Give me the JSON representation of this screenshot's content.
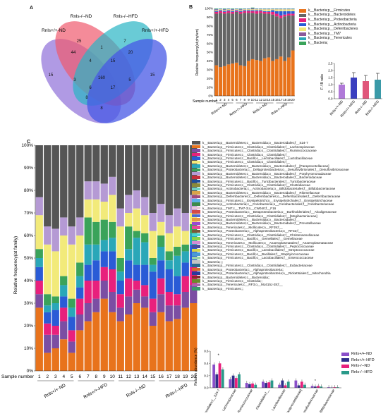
{
  "panels": {
    "a": "A",
    "b": "B",
    "c": "C"
  },
  "venn": {
    "labels": [
      "Rnls+/+-ND",
      "Rnls-/--ND",
      "Rnls-/--HFD",
      "Rnls+/+-HFD"
    ],
    "colors": [
      "#8f6fd8",
      "#f05a6e",
      "#2ab5c4",
      "#4758e6"
    ],
    "numbers": [
      "15",
      "25",
      "7",
      "15",
      "44",
      "1",
      "4",
      "15",
      "20",
      "160",
      "3",
      "17",
      "5",
      "8",
      "8",
      "6"
    ]
  },
  "phylum_chart": {
    "type": "bar",
    "ylabel": "Relative frequency(at phylum)",
    "yticks": [
      "0%",
      "10%",
      "20%",
      "30%",
      "40%",
      "50%",
      "60%",
      "70%",
      "80%",
      "90%",
      "100%"
    ],
    "x_title": "Sample number",
    "categories": [
      "1",
      "2",
      "3",
      "4",
      "5",
      "6",
      "7",
      "8",
      "9",
      "10",
      "11",
      "12",
      "13",
      "14",
      "15",
      "16",
      "17",
      "18",
      "19",
      "20"
    ],
    "groups": [
      "Rnls+/+-ND",
      "Rnls+/+-HFD",
      "Rnls-/--ND",
      "Rnls-/--HFD"
    ],
    "series": [
      {
        "name": "k__Bacteria;p__Firmicutes",
        "color": "#e8731c",
        "values": [
          35,
          33,
          34,
          36,
          37,
          38,
          35,
          34,
          40,
          42,
          41,
          40,
          43,
          44,
          40,
          42,
          45,
          40,
          44,
          52
        ]
      },
      {
        "name": "k__Bacteria;p__Bacteroidetes",
        "color": "#666666",
        "values": [
          59,
          62,
          60,
          59,
          57,
          58,
          59,
          61,
          55,
          53,
          53,
          55,
          51,
          50,
          53,
          49,
          44,
          51,
          48,
          40
        ]
      },
      {
        "name": "k__Bacteria;p__Proteobacteria",
        "color": "#e8207c",
        "values": [
          2,
          2,
          2,
          2,
          2,
          1,
          2,
          2,
          2,
          2,
          3,
          2,
          2,
          2,
          3,
          3,
          3,
          2,
          2,
          2
        ]
      },
      {
        "name": "k__Bacteria;p__Actinobacteria",
        "color": "#2a5bd6",
        "values": [
          1,
          1,
          1,
          1,
          1,
          1,
          1,
          1,
          1,
          1,
          1,
          1,
          1,
          1,
          2,
          3,
          5,
          4,
          3,
          3
        ]
      },
      {
        "name": "k__Bacteria;p__Deferribacteres",
        "color": "#f2ea7a",
        "values": [
          1,
          1,
          1,
          1,
          1,
          1,
          1,
          1,
          1,
          1,
          1,
          1,
          2,
          2,
          1,
          2,
          2,
          2,
          2,
          2
        ]
      },
      {
        "name": "k__Bacteria;p__TM7",
        "color": "#8a5a9a",
        "values": [
          1,
          0.5,
          1,
          0.5,
          1,
          0.5,
          1,
          0.5,
          0.5,
          1,
          0.5,
          0.5,
          0.5,
          0.5,
          0.5,
          0.5,
          0.5,
          0.5,
          0.5,
          0.5
        ]
      },
      {
        "name": "k__Bacteria;p__Tenericutes",
        "color": "#2aa7b8",
        "values": [
          0.5,
          0.5,
          0.5,
          0.5,
          0.5,
          0.5,
          0.5,
          0.5,
          0.5,
          0.5,
          0.5,
          0.5,
          0.5,
          0.5,
          0.5,
          0.5,
          0.5,
          0.5,
          0.5,
          0.5
        ]
      },
      {
        "name": "k__Bacteria;",
        "color": "#3aa35a",
        "values": [
          0.5,
          0,
          0.5,
          0,
          0.5,
          0,
          0.5,
          0,
          0,
          0.5,
          0,
          0,
          0,
          0,
          0,
          0,
          0,
          0,
          0,
          0
        ]
      }
    ]
  },
  "fb_ratio": {
    "type": "bar",
    "ylabel": "F / B ratio",
    "yticks": [
      "0.0",
      "0.5",
      "1.0",
      "1.5",
      "2.0",
      "2.5"
    ],
    "categories": [
      "Rnls+/+-ND",
      "Rnls+/+-HFD",
      "Rnls-/--ND",
      "Rnls-/--HFD"
    ],
    "values": [
      1.0,
      1.5,
      1.25,
      1.35
    ],
    "errors": [
      0.1,
      0.35,
      0.4,
      0.45
    ],
    "colors": [
      "#b079d8",
      "#3a3fbf",
      "#e0567a",
      "#3a9aa8"
    ],
    "ylim": [
      0,
      2.5
    ]
  },
  "family_chart": {
    "type": "bar",
    "ylabel": "Relative frequency(at family)",
    "yticks": [
      "0%",
      "10%",
      "20%",
      "30%",
      "40%",
      "50%",
      "60%",
      "70%",
      "80%",
      "90%",
      "100%"
    ],
    "x_title": "Sample number",
    "categories": [
      "1",
      "2",
      "3",
      "4",
      "5",
      "6",
      "7",
      "8",
      "9",
      "10",
      "11",
      "12",
      "13",
      "14",
      "15",
      "16",
      "17",
      "18",
      "19",
      "20"
    ],
    "groups": [
      "Rnls+/+-ND",
      "Rnls+/+-HFD",
      "Rnls-/--ND",
      "Rnls-/--HFD"
    ],
    "series": [
      {
        "name": "S24-7",
        "color": "#e8731c",
        "values": [
          28,
          8,
          10,
          14,
          8,
          18,
          22,
          26,
          32,
          26,
          22,
          25,
          30,
          28,
          20,
          26,
          22,
          23,
          28,
          30
        ]
      },
      {
        "name": "Lachnospiraceae",
        "color": "#7b4ea3",
        "values": [
          6,
          8,
          6,
          8,
          5,
          7,
          8,
          6,
          8,
          9,
          6,
          8,
          6,
          5,
          6,
          8,
          7,
          6,
          7,
          8
        ]
      },
      {
        "name": "Ruminococcaceae",
        "color": "#e8207c",
        "values": [
          6,
          5,
          4,
          6,
          5,
          7,
          10,
          8,
          6,
          10,
          6,
          8,
          4,
          5,
          6,
          7,
          6,
          5,
          7,
          8
        ]
      },
      {
        "name": "Clostridiales",
        "color": "#2a5bd6",
        "values": [
          6,
          5,
          7,
          5,
          6,
          5,
          7,
          9,
          7,
          8,
          6,
          8,
          7,
          9,
          12,
          8,
          10,
          8,
          6,
          10
        ]
      },
      {
        "name": "Lactobacillaceae",
        "color": "#2aa7b8",
        "values": [
          4,
          3,
          3,
          5,
          4,
          5,
          9,
          7,
          5,
          6,
          4,
          5,
          12,
          10,
          3,
          6,
          4,
          9,
          5,
          5
        ]
      },
      {
        "name": "Bacteroidales",
        "color": "#3aa35a",
        "values": [
          4,
          5,
          3,
          4,
          4,
          6,
          12,
          10,
          9,
          7,
          6,
          10,
          3,
          4,
          3,
          5,
          4,
          4,
          3,
          4
        ]
      },
      {
        "name": "Paraprevotellaceae",
        "color": "#f2ea7a",
        "values": [
          15,
          22,
          20,
          18,
          24,
          12,
          8,
          10,
          8,
          12,
          14,
          6,
          10,
          8,
          12,
          6,
          8,
          9,
          6,
          5
        ]
      },
      {
        "name": "Other",
        "color": "#b59ad4",
        "values": [
          8,
          8,
          10,
          8,
          8,
          8,
          8,
          8,
          8,
          8,
          8,
          8,
          8,
          8,
          8,
          8,
          8,
          8,
          8,
          8
        ]
      }
    ],
    "top_color": "#555555"
  },
  "family_legend": [
    {
      "color": "#555555",
      "label": "k__Bacteria;p__Bacteroidetes;c__Bacteroidia;o__Bacteroidales;f__S24-7"
    },
    {
      "color": "#e8731c",
      "label": "k__Bacteria;p__Firmicutes;c__Clostridia;o__Clostridiales;f__Lachnospiraceae"
    },
    {
      "color": "#7b4ea3",
      "label": "k__Bacteria;p__Firmicutes;c__Clostridia;o__Clostridiales;f__Ruminococcaceae"
    },
    {
      "color": "#e8207c",
      "label": "k__Bacteria;p__Firmicutes;c__Clostridia;o__Clostridiales;f__"
    },
    {
      "color": "#2a5bd6",
      "label": "k__Bacteria;p__Firmicutes;c__Bacilli;o__Lactobacillales;f__Lactobacillaceae"
    },
    {
      "color": "#f2ea7a",
      "label": "k__Bacteria;p__Firmicutes;c__Clostridia;o__Clostridiales;f__"
    },
    {
      "color": "#2aa7b8",
      "label": "k__Bacteria;p__Bacteroidetes;c__Bacteroidia;o__Bacteroidales;f__[Paraprevotellaceae]"
    },
    {
      "color": "#3aa35a",
      "label": "k__Bacteria;p__Proteobacteria;c__Deltaproteobacteria;o__Desulfovibrionales;f__Desulfovibrionaceae"
    },
    {
      "color": "#b59ad4",
      "label": "k__Bacteria;p__Bacteroidetes;c__Bacteroidia;o__Bacteroidales;f__Porphyromonadaceae"
    },
    {
      "color": "#c62f3a",
      "label": "k__Bacteria;p__Bacteroidetes;c__Bacteroidia;o__Bacteroidales;f__Bacteroidaceae"
    },
    {
      "color": "#1f4e9c",
      "label": "k__Bacteria;p__Firmicutes;c__Bacilli;o__Turicibacterales;f__Turicibacteraceae"
    },
    {
      "color": "#8a8a3a",
      "label": "k__Bacteria;p__Firmicutes;c__Clostridia;o__Clostridiales;f__Clostridiaceae"
    },
    {
      "color": "#6fd1c4",
      "label": "k__Bacteria;p__Actinobacteria;c__Actinobacteria;o__Bifidobacteriales;f__Bifidobacteriaceae"
    },
    {
      "color": "#d9a34a",
      "label": "k__Bacteria;p__Bacteroidetes;c__Bacteroidia;o__Bacteroidales;f__Rikenellaceae"
    },
    {
      "color": "#a14a7a",
      "label": "k__Bacteria;p__Deferribacteres;c__Deferribacteres;o__Deferribacterales;f__Deferribacteraceae"
    },
    {
      "color": "#5ab0e8",
      "label": "k__Bacteria;p__Firmicutes;c__Erysipelotrichi;o__Erysipelotrichales;f__Erysipelotrichaceae"
    },
    {
      "color": "#3d8a4a",
      "label": "k__Bacteria;p__Actinobacteria;c__Coriobacteriia;o__Coriobacteriales;f__Coriobacteriaceae"
    },
    {
      "color": "#e8c8d8",
      "label": "k__Bacteria;p__TM7;c__TM7-3;o__CW040;f__F16"
    },
    {
      "color": "#d44a4a",
      "label": "k__Bacteria;p__Proteobacteria;c__Betaproteobacteria;o__Burkholderiales;f__Alcaligenaceae"
    },
    {
      "color": "#4a6ad4",
      "label": "k__Bacteria;p__Firmicutes;c__Clostridia;o__Clostridiales;f__[Mogibacteriaceae]"
    },
    {
      "color": "#e89a4a",
      "label": "k__Bacteria;p__Bacteroidetes;c__Bacteroidia;o__Bacteroidales;f__"
    },
    {
      "color": "#9a4ad4",
      "label": "k__Bacteria;p__Bacteroidetes;c__Bacteroidia;o__Bacteroidales;f__Prevotellaceae"
    },
    {
      "color": "#e84a9a",
      "label": "k__Bacteria;p__Tenericutes;c__Mollicutes;o__RF39;f__"
    },
    {
      "color": "#7a5a3a",
      "label": "k__Bacteria;p__Proteobacteria;c__Alphaproteobacteria;o__RF32;f__"
    },
    {
      "color": "#4ad4d4",
      "label": "k__Bacteria;p__Firmicutes;c__Clostridia;o__Clostridiales;f__Christensenellaceae"
    },
    {
      "color": "#8ad44a",
      "label": "k__Bacteria;p__Firmicutes;c__Bacilli;o__Gemellales;f__Gemellaceae"
    },
    {
      "color": "#d48ad4",
      "label": "k__Bacteria;p__Tenericutes;c__Mollicutes;o__Anaeroplasmatales;f__Anaeroplasmataceae"
    },
    {
      "color": "#4a4a9a",
      "label": "k__Bacteria;p__Firmicutes;c__Clostridia;o__Clostridiales;f__Peptococcaceae"
    },
    {
      "color": "#d4d44a",
      "label": "k__Bacteria;p__Firmicutes;c__Bacilli;o__Lactobacillales;f__Streptococcaceae"
    },
    {
      "color": "#4a9ad4",
      "label": "k__Bacteria;p__Firmicutes;c__Bacilli;o__Bacillales;f__Staphylococcaceae"
    },
    {
      "color": "#9ad4a4",
      "label": "k__Bacteria;p__Firmicutes;c__Bacilli;o__Lactobacillales;f__Enterococcaceae"
    },
    {
      "color": "#c4c4c4",
      "label": "k__Bacteria;;;;"
    },
    {
      "color": "#2a6a8a",
      "label": "k__Bacteria;p__Firmicutes;c__Clostridia;o__Clostridiales;f__Eubacteriaceae"
    },
    {
      "color": "#d46a2a",
      "label": "k__Bacteria;p__Proteobacteria;c__Alphaproteobacteria;;"
    },
    {
      "color": "#2a3a9a",
      "label": "k__Bacteria;p__Proteobacteria;c__Alphaproteobacteria;o__Rickettsiales;f__mitochondria"
    },
    {
      "color": "#8a2a2a",
      "label": "k__Bacteria;p__Bacteroidetes;c__Bacteroidia;;"
    },
    {
      "color": "#6a8a2a",
      "label": "k__Bacteria;p__Firmicutes;c__Clostridia;;"
    },
    {
      "color": "#aa6aaa",
      "label": "k__Bacteria;p__Tenericutes;c__RF3;o__ML615J-28;f__"
    },
    {
      "color": "#3a9a6a",
      "label": "k__Bacteria;p__Firmicutes;;;"
    }
  ],
  "abundance_chart": {
    "type": "bar",
    "ylabel": "Relative abundance (%)",
    "yticks": [
      "0.0",
      "0.2",
      "0.4",
      "0.6"
    ],
    "ylim": [
      0,
      0.6
    ],
    "categories": [
      "Bacteroidales;f__S24-7",
      "Lachnospiraceae",
      "Ruminococcaceae",
      "Clostridiales;f__",
      "Lactobacillaceae",
      "[Paraprevotellaceae]",
      "Desulfovibrionaceae",
      "Bifidobacteriaceae"
    ],
    "series": [
      {
        "name": "Rnls+/+-ND",
        "color": "#8a4fc9",
        "values": [
          0.38,
          0.14,
          0.08,
          0.1,
          0.05,
          0.12,
          0.03,
          0.01
        ]
      },
      {
        "name": "Rnls+/+-HFD",
        "color": "#2e2e8a",
        "values": [
          0.22,
          0.2,
          0.06,
          0.08,
          0.12,
          0.04,
          0.02,
          0.005
        ]
      },
      {
        "name": "Rnls-/--ND",
        "color": "#e8207c",
        "values": [
          0.4,
          0.16,
          0.07,
          0.09,
          0.04,
          0.1,
          0.03,
          0.01
        ]
      },
      {
        "name": "Rnls-/--HFD",
        "color": "#2a9a8a",
        "values": [
          0.3,
          0.22,
          0.05,
          0.12,
          0.1,
          0.05,
          0.02,
          0.01
        ]
      }
    ],
    "annotations": [
      "*",
      "*"
    ]
  }
}
